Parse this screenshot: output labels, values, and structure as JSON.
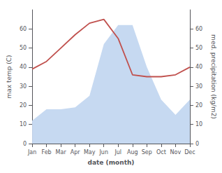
{
  "chart_data": {
    "type": "line",
    "xlabel": "date (month)",
    "ylabel": "max temp (C)",
    "y2label": "med. precipitation (kg/m2)",
    "categories": [
      "Jan",
      "Feb",
      "Mar",
      "Apr",
      "May",
      "Jun",
      "Jul",
      "Aug",
      "Sep",
      "Oct",
      "Nov",
      "Dec"
    ],
    "series": [
      {
        "type": "area",
        "axis": "y2",
        "color": "#c6d9f1",
        "values": [
          12,
          18,
          18,
          19,
          25,
          52,
          62,
          62,
          40,
          23,
          15,
          23
        ]
      },
      {
        "type": "line",
        "axis": "y",
        "color": "#c0504d",
        "values": [
          39,
          43,
          50,
          57,
          63,
          65,
          55,
          36,
          35,
          35,
          36,
          40
        ]
      }
    ],
    "ylim": [
      0,
      70
    ],
    "yticks": [
      0,
      10,
      20,
      30,
      40,
      50,
      60
    ],
    "y2lim": [
      0,
      70
    ],
    "y2ticks": [
      0,
      10,
      20,
      30,
      40,
      50,
      60
    ],
    "grid": false
  }
}
